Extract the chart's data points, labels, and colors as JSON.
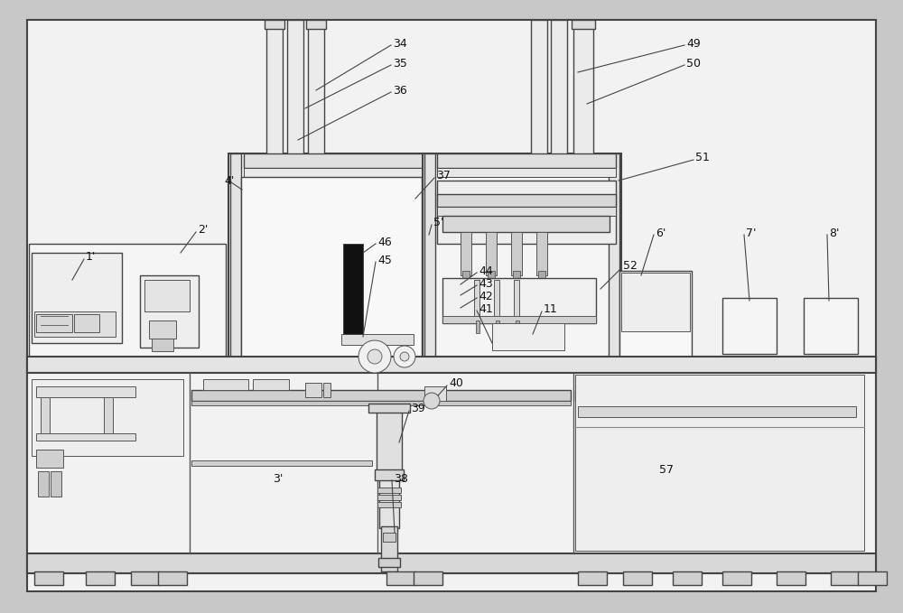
{
  "bg_color": "#c8c8c8",
  "diagram_bg": "#f0f0f0",
  "line_color": "#444444",
  "dark_color": "#222222",
  "fill_light": "#e8e8e8",
  "fill_mid": "#d8d8d8",
  "fill_dark": "#cccccc",
  "black_fill": "#111111",
  "white_fill": "#f8f8f8"
}
